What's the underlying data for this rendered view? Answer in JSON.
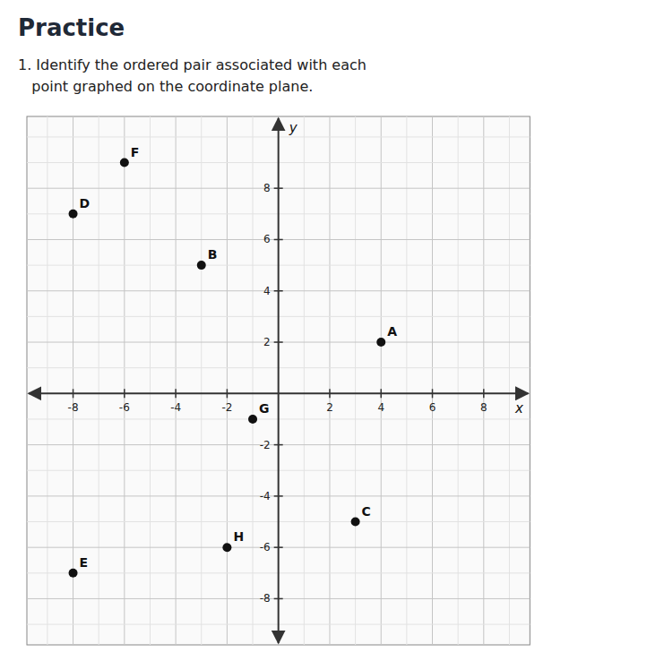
{
  "chart_data": {
    "type": "scatter",
    "title": "Practice",
    "annotations": [
      "1. Identify the ordered pair associated with each",
      "   point graphed on the coordinate plane."
    ],
    "x_label": "x",
    "y_label": "y",
    "labels": [
      "A",
      "B",
      "C",
      "D",
      "E",
      "F",
      "G",
      "H"
    ],
    "x": [
      4,
      -3,
      3,
      -8,
      -8,
      -6,
      -1,
      -2
    ],
    "values": [
      2,
      5,
      -5,
      7,
      -7,
      9,
      -1,
      -6
    ],
    "color": "#111111",
    "xlim": [
      -9.8,
      9.8
    ],
    "ylim": [
      -9.8,
      10.8
    ],
    "xticks": [
      -8,
      -6,
      -4,
      -2,
      2,
      4,
      6,
      8
    ],
    "yticks": [
      -8,
      -6,
      -4,
      -2,
      2,
      4,
      6,
      8
    ],
    "grid": true,
    "data_labels": true
  }
}
